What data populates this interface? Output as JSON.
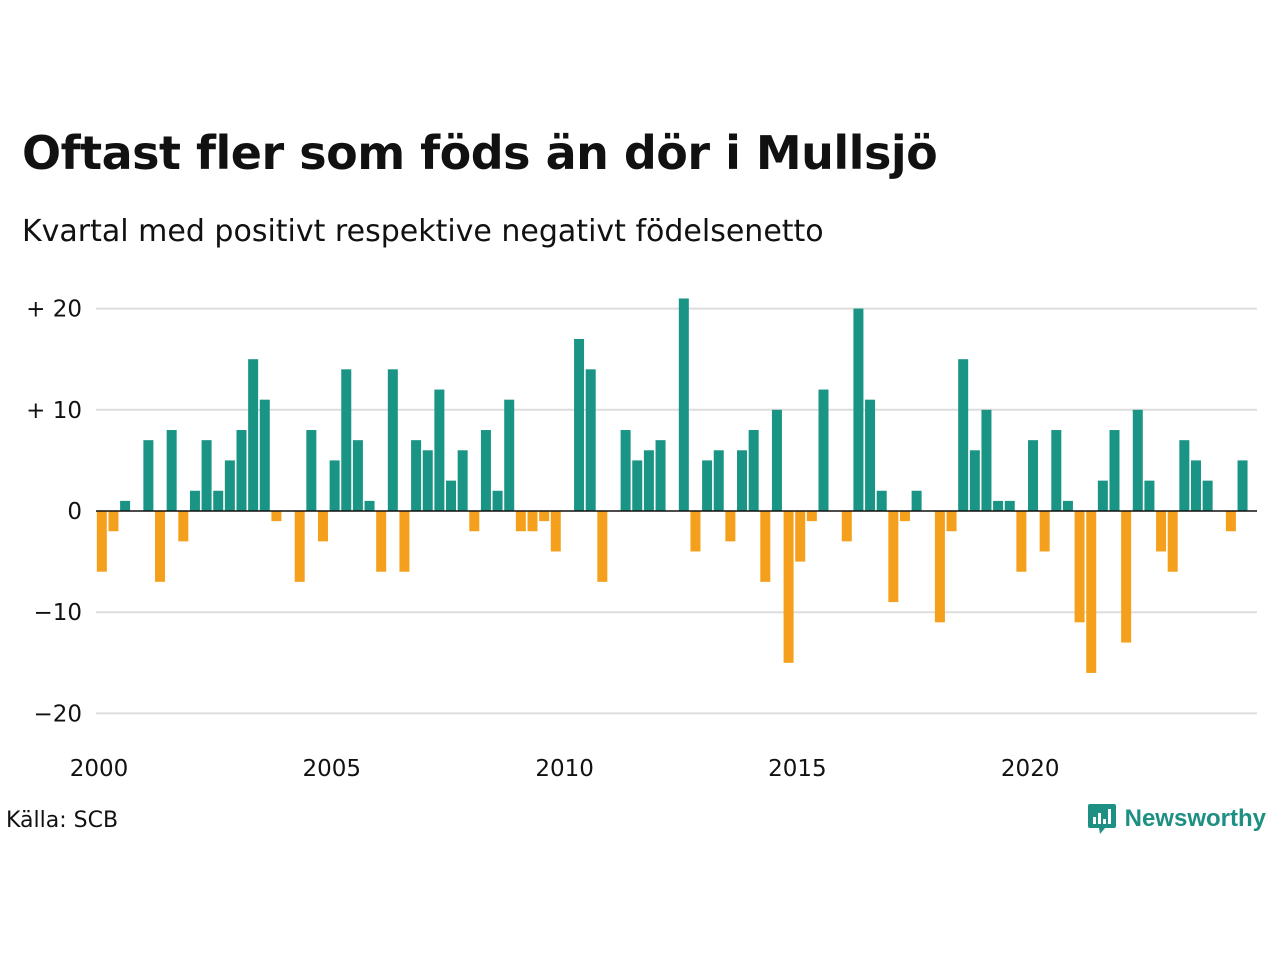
{
  "chart_data": {
    "type": "bar",
    "title": "Oftast fler som föds än dör i Mullsjö",
    "subtitle": "Kvartal med positivt respektive negativt födelsenetto",
    "source": "Källa: SCB",
    "brand": "Newsworthy",
    "x_start": "2000 Q1",
    "x_ticks": [
      "2000",
      "2005",
      "2010",
      "2015",
      "2020"
    ],
    "y_ticks": [
      "+ 20",
      "+ 10",
      "0",
      "−10",
      "−20"
    ],
    "ylim": [
      -22,
      21.5
    ],
    "colors": {
      "positive": "#1a9485",
      "negative": "#f5a01c"
    },
    "values": [
      -6,
      -2,
      1,
      0,
      7,
      -7,
      8,
      -3,
      2,
      7,
      2,
      5,
      8,
      15,
      11,
      -1,
      0,
      -7,
      8,
      -3,
      5,
      14,
      7,
      1,
      -6,
      14,
      -6,
      7,
      6,
      12,
      3,
      6,
      -2,
      8,
      2,
      11,
      -2,
      -2,
      -1,
      -4,
      0,
      17,
      14,
      -7,
      0,
      8,
      5,
      6,
      7,
      0,
      21,
      -4,
      5,
      6,
      -3,
      6,
      8,
      -7,
      10,
      -15,
      -5,
      -1,
      12,
      0,
      -3,
      20,
      11,
      2,
      -9,
      -1,
      2,
      0,
      -11,
      -2,
      15,
      6,
      10,
      1,
      1,
      -6,
      7,
      -4,
      8,
      1,
      -11,
      -16,
      3,
      8,
      -13,
      10,
      3,
      -4,
      -6,
      7,
      5,
      3,
      0,
      -2,
      5
    ]
  }
}
